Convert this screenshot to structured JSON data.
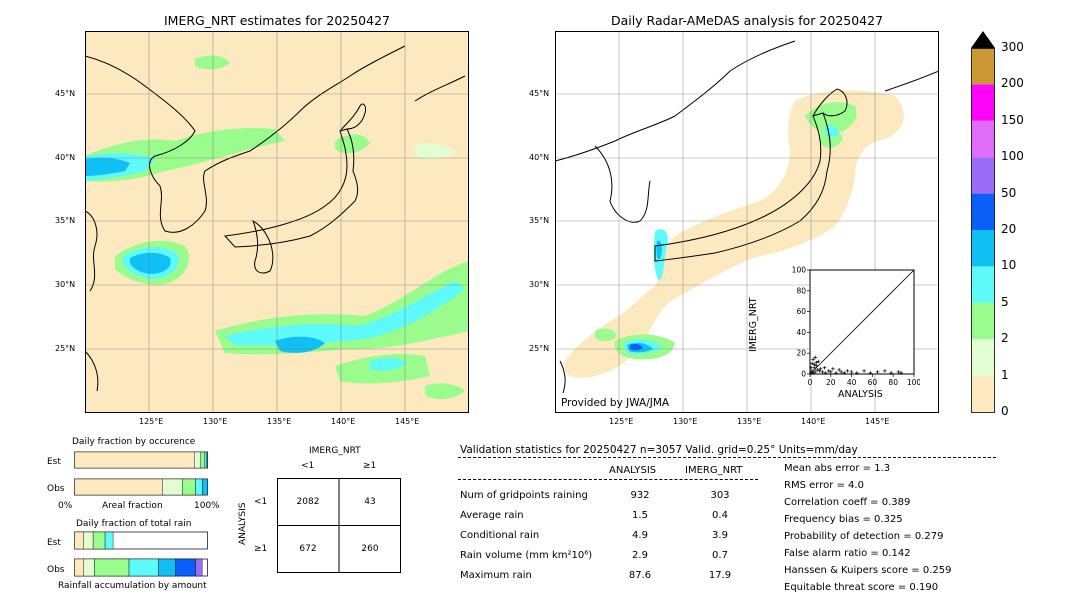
{
  "left_map": {
    "title": "IMERG_NRT estimates for 20250427",
    "lat_labels": [
      "45°N",
      "40°N",
      "35°N",
      "30°N",
      "25°N"
    ],
    "lon_labels": [
      "125°E",
      "130°E",
      "135°E",
      "140°E",
      "145°E"
    ]
  },
  "right_map": {
    "title": "Daily Radar-AMeDAS analysis for 20250427",
    "lat_labels": [
      "45°N",
      "40°N",
      "35°N",
      "30°N",
      "25°N"
    ],
    "lon_labels": [
      "125°E",
      "130°E",
      "135°E",
      "140°E",
      "145°E"
    ],
    "provider": "Provided by JWA/JMA"
  },
  "colorbar": {
    "labels": [
      "0",
      "1",
      "2",
      "5",
      "10",
      "20",
      "50",
      "100",
      "150",
      "200",
      "300"
    ],
    "colors": [
      "#fde9c0",
      "#e2fdd2",
      "#9afc8c",
      "#5ef9f9",
      "#10c0f5",
      "#0a5ff8",
      "#9a6cf8",
      "#e06cf8",
      "#fe04f8",
      "#cc9836"
    ],
    "extend_color": "#000000"
  },
  "scatter": {
    "xlabel": "ANALYSIS",
    "ylabel": "IMERG_NRT",
    "ticks": [
      "0",
      "20",
      "40",
      "60",
      "80",
      "100"
    ]
  },
  "fraction_occurrence": {
    "title": "Daily fraction by occurence",
    "rows": [
      "Est",
      "Obs"
    ],
    "axis_left": "0%",
    "axis_mid": "Areal fraction",
    "axis_right": "100%"
  },
  "fraction_rain": {
    "title": "Daily fraction of total rain",
    "rows": [
      "Est",
      "Obs"
    ],
    "axis_label": "Rainfall accumulation by amount"
  },
  "contingency": {
    "col_header": "IMERG_NRT",
    "row_header": "ANALYSIS",
    "col_labels": [
      "<1",
      "≥1"
    ],
    "row_labels": [
      "<1",
      "≥1"
    ],
    "cells": [
      [
        "2082",
        "43"
      ],
      [
        "672",
        "260"
      ]
    ]
  },
  "validation": {
    "header": "Validation statistics for 20250427  n=3057 Valid. grid=0.25° Units=mm/day",
    "col_analysis": "ANALYSIS",
    "col_imerg": "IMERG_NRT",
    "rows": [
      {
        "label": "Num of gridpoints raining",
        "analysis": "932",
        "imerg": "303"
      },
      {
        "label": "Average rain",
        "analysis": "1.5",
        "imerg": "0.4"
      },
      {
        "label": "Conditional rain",
        "analysis": "4.9",
        "imerg": "3.9"
      },
      {
        "label": "Rain volume (mm km²10⁶)",
        "analysis": "2.9",
        "imerg": "0.7"
      },
      {
        "label": "Maximum rain",
        "analysis": "87.6",
        "imerg": "17.9"
      }
    ],
    "scores": [
      "Mean abs error =    1.3",
      "RMS error =    4.0",
      "Correlation coeff =  0.389",
      "Frequency bias =  0.325",
      "Probability of detection =  0.279",
      "False alarm ratio =  0.142",
      "Hanssen & Kuipers score =  0.259",
      "Equitable threat score =  0.190"
    ]
  },
  "chart_data": [
    {
      "type": "heatmap",
      "title": "IMERG_NRT estimates for 20250427",
      "x_range_deg_e": [
        120,
        150
      ],
      "y_range_deg_n": [
        20,
        50
      ],
      "units": "mm/day"
    },
    {
      "type": "heatmap",
      "title": "Daily Radar-AMeDAS analysis for 20250427",
      "x_range_deg_e": [
        120,
        150
      ],
      "y_range_deg_n": [
        20,
        50
      ],
      "units": "mm/day"
    },
    {
      "type": "scatter",
      "xlabel": "ANALYSIS",
      "ylabel": "IMERG_NRT",
      "xlim": [
        0,
        100
      ],
      "ylim": [
        0,
        100
      ],
      "points": [
        [
          1,
          1
        ],
        [
          2,
          3
        ],
        [
          3,
          1
        ],
        [
          4,
          6
        ],
        [
          5,
          2
        ],
        [
          6,
          8
        ],
        [
          7,
          4
        ],
        [
          8,
          12
        ],
        [
          9,
          3
        ],
        [
          10,
          5
        ],
        [
          12,
          2
        ],
        [
          14,
          6
        ],
        [
          15,
          1
        ],
        [
          18,
          3
        ],
        [
          20,
          2
        ],
        [
          22,
          5
        ],
        [
          25,
          1
        ],
        [
          28,
          4
        ],
        [
          30,
          2
        ],
        [
          33,
          1
        ],
        [
          36,
          3
        ],
        [
          40,
          2
        ],
        [
          45,
          1
        ],
        [
          52,
          3
        ],
        [
          58,
          1
        ],
        [
          65,
          2
        ],
        [
          72,
          3
        ],
        [
          78,
          1
        ],
        [
          85,
          2
        ],
        [
          87.6,
          1
        ],
        [
          3,
          14
        ],
        [
          5,
          16
        ],
        [
          2,
          10
        ],
        [
          6,
          11
        ],
        [
          1,
          6
        ],
        [
          4,
          9
        ]
      ]
    },
    {
      "type": "bar",
      "title": "Daily fraction by occurence",
      "categories": [
        "Est",
        "Obs"
      ],
      "series": [
        {
          "values": [
            0.9,
            0.66
          ]
        },
        {
          "values": [
            0.05,
            0.15
          ]
        },
        {
          "values": [
            0.03,
            0.1
          ]
        },
        {
          "values": [
            0.015,
            0.05
          ]
        },
        {
          "values": [
            0.005,
            0.04
          ]
        }
      ]
    },
    {
      "type": "bar",
      "title": "Daily fraction of total rain",
      "categories": [
        "Est",
        "Obs"
      ],
      "series": [
        {
          "values": [
            0.07,
            0.07
          ]
        },
        {
          "values": [
            0.07,
            0.08
          ]
        },
        {
          "values": [
            0.09,
            0.26
          ]
        },
        {
          "values": [
            0.06,
            0.22
          ]
        },
        {
          "values": [
            0.0,
            0.13
          ]
        },
        {
          "values": [
            0.0,
            0.15
          ]
        },
        {
          "values": [
            0.0,
            0.05
          ]
        }
      ]
    },
    {
      "type": "table",
      "col_labels": [
        "<1",
        "≥1"
      ],
      "row_labels": [
        "<1",
        "≥1"
      ],
      "values": [
        [
          2082,
          43
        ],
        [
          672,
          260
        ]
      ]
    }
  ]
}
